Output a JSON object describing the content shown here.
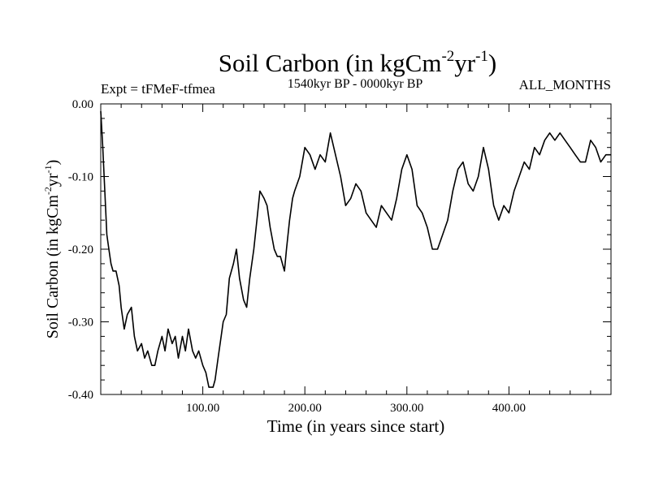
{
  "chart_data": {
    "type": "line",
    "title": "Soil Carbon (in kgCm",
    "title_exp1": "-2",
    "title_mid": "yr",
    "title_exp2": "-1",
    "title_end": ")",
    "subtitle": "1540kyr BP - 0000kyr BP",
    "expt_label": "Expt = tFMeF-tfmea",
    "months_label": "ALL_MONTHS",
    "xlabel": "Time (in years since start)",
    "ylabel": "Soil Carbon (in kgCm",
    "ylabel_exp1": "-2",
    "ylabel_mid": "yr",
    "ylabel_exp2": "-1",
    "ylabel_end": ")",
    "xlim": [
      0,
      500
    ],
    "ylim": [
      -0.4,
      0.0
    ],
    "x_ticks": [
      {
        "value": 100,
        "label": "100.00"
      },
      {
        "value": 200,
        "label": "200.00"
      },
      {
        "value": 300,
        "label": "300.00"
      },
      {
        "value": 400,
        "label": "400.00"
      }
    ],
    "y_ticks": [
      {
        "value": 0.0,
        "label": "0.00"
      },
      {
        "value": -0.1,
        "label": "-0.10"
      },
      {
        "value": -0.2,
        "label": "-0.20"
      },
      {
        "value": -0.3,
        "label": "-0.30"
      },
      {
        "value": -0.4,
        "label": "-0.40"
      }
    ],
    "series": [
      {
        "name": "Soil Carbon",
        "color": "#000000",
        "x": [
          0,
          2,
          4,
          6,
          8,
          10,
          12,
          15,
          18,
          20,
          23,
          26,
          30,
          33,
          36,
          40,
          43,
          46,
          50,
          53,
          56,
          60,
          63,
          66,
          70,
          73,
          76,
          80,
          83,
          86,
          90,
          93,
          96,
          100,
          103,
          106,
          108,
          110,
          112,
          115,
          118,
          120,
          123,
          126,
          130,
          133,
          136,
          140,
          143,
          146,
          150,
          153,
          156,
          160,
          163,
          166,
          170,
          173,
          176,
          180,
          182,
          185,
          188,
          190,
          195,
          200,
          205,
          210,
          215,
          220,
          225,
          230,
          235,
          240,
          245,
          250,
          255,
          260,
          265,
          270,
          275,
          280,
          285,
          290,
          295,
          300,
          305,
          310,
          315,
          320,
          325,
          330,
          335,
          340,
          345,
          350,
          355,
          360,
          365,
          370,
          375,
          380,
          385,
          390,
          395,
          400,
          405,
          410,
          415,
          420,
          425,
          430,
          435,
          440,
          445,
          450,
          455,
          460,
          465,
          470,
          475,
          480,
          485,
          490,
          495,
          500
        ],
        "values": [
          -0.01,
          -0.06,
          -0.12,
          -0.18,
          -0.2,
          -0.22,
          -0.23,
          -0.23,
          -0.25,
          -0.28,
          -0.31,
          -0.29,
          -0.28,
          -0.32,
          -0.34,
          -0.33,
          -0.35,
          -0.34,
          -0.36,
          -0.36,
          -0.34,
          -0.32,
          -0.34,
          -0.31,
          -0.33,
          -0.32,
          -0.35,
          -0.32,
          -0.34,
          -0.31,
          -0.34,
          -0.35,
          -0.34,
          -0.36,
          -0.37,
          -0.39,
          -0.39,
          -0.39,
          -0.38,
          -0.35,
          -0.32,
          -0.3,
          -0.29,
          -0.24,
          -0.22,
          -0.2,
          -0.24,
          -0.27,
          -0.28,
          -0.24,
          -0.2,
          -0.16,
          -0.12,
          -0.13,
          -0.14,
          -0.17,
          -0.2,
          -0.21,
          -0.21,
          -0.23,
          -0.2,
          -0.16,
          -0.13,
          -0.12,
          -0.1,
          -0.06,
          -0.07,
          -0.09,
          -0.07,
          -0.08,
          -0.04,
          -0.07,
          -0.1,
          -0.14,
          -0.13,
          -0.11,
          -0.12,
          -0.15,
          -0.16,
          -0.17,
          -0.14,
          -0.15,
          -0.16,
          -0.13,
          -0.09,
          -0.07,
          -0.09,
          -0.14,
          -0.15,
          -0.17,
          -0.2,
          -0.2,
          -0.18,
          -0.16,
          -0.12,
          -0.09,
          -0.08,
          -0.11,
          -0.12,
          -0.1,
          -0.06,
          -0.09,
          -0.14,
          -0.16,
          -0.14,
          -0.15,
          -0.12,
          -0.1,
          -0.08,
          -0.09,
          -0.06,
          -0.07,
          -0.05,
          -0.04,
          -0.05,
          -0.04,
          -0.05,
          -0.06,
          -0.07,
          -0.08,
          -0.08,
          -0.05,
          -0.06,
          -0.08,
          -0.07,
          -0.07
        ]
      }
    ]
  }
}
